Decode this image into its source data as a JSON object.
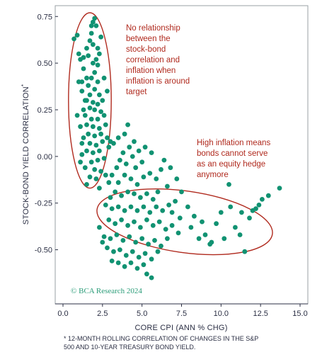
{
  "chart_data": {
    "type": "scatter",
    "xlabel": "CORE CPI (ANN % CHG)",
    "ylabel": "STOCK-BOND YIELD CORRELATION",
    "ylabel_marker": "*",
    "x_ticks": [
      "0.0",
      "2.5",
      "5.0",
      "7.5",
      "10.0",
      "12.5",
      "15.0"
    ],
    "y_ticks": [
      "0.75",
      "0.50",
      "0.25",
      "0.00",
      "-0.25",
      "-0.50"
    ],
    "xlim": [
      0,
      15
    ],
    "ylim": [
      -0.68,
      0.77
    ],
    "grid": false,
    "colors": {
      "points": "#119272",
      "annotation": "#b02a1e",
      "axis": "#2b2f44",
      "frame": "#9aa0a6"
    },
    "annotations": [
      {
        "lines": [
          "No relationship",
          "between the",
          "stock-bond",
          "correlation and",
          "inflation when",
          "inflation is around",
          "target"
        ]
      },
      {
        "lines": [
          "High inflation means",
          "bonds cannot serve",
          "as an equity hedge",
          "anymore"
        ]
      }
    ],
    "ellipses": [
      {
        "center_x": 1.7,
        "center_y": 0.3,
        "radius_x": 1.35,
        "radius_y": 0.47
      },
      {
        "center_x": 7.7,
        "center_y": -0.35,
        "radius_x": 5.6,
        "radius_y": 0.165,
        "rotation_deg": 8
      }
    ],
    "credit": "© BCA Research 2024",
    "footnote": [
      "* 12-MONTH ROLLING CORRELATION OF CHANGES IN THE S&P",
      "500 AND 10-YEAR TREASURY BOND YIELD."
    ],
    "points": [
      [
        0.7,
        0.63
      ],
      [
        0.9,
        0.65
      ],
      [
        1.0,
        0.55
      ],
      [
        1.1,
        0.52
      ],
      [
        1.2,
        0.4
      ],
      [
        1.3,
        0.47
      ],
      [
        1.4,
        0.3
      ],
      [
        1.5,
        0.42
      ],
      [
        1.6,
        0.54
      ],
      [
        1.7,
        0.62
      ],
      [
        1.8,
        0.7
      ],
      [
        1.9,
        0.72
      ],
      [
        2.0,
        0.74
      ],
      [
        1.8,
        0.66
      ],
      [
        2.1,
        0.7
      ],
      [
        1.9,
        0.6
      ],
      [
        2.1,
        0.52
      ],
      [
        2.3,
        0.55
      ],
      [
        2.2,
        0.49
      ],
      [
        1.9,
        0.5
      ],
      [
        2.0,
        0.45
      ],
      [
        1.8,
        0.42
      ],
      [
        2.2,
        0.4
      ],
      [
        1.6,
        0.38
      ],
      [
        1.7,
        0.33
      ],
      [
        2.0,
        0.36
      ],
      [
        2.3,
        0.33
      ],
      [
        1.5,
        0.3
      ],
      [
        1.9,
        0.29
      ],
      [
        2.2,
        0.28
      ],
      [
        2.5,
        0.3
      ],
      [
        1.7,
        0.26
      ],
      [
        2.0,
        0.25
      ],
      [
        2.4,
        0.24
      ],
      [
        1.4,
        0.22
      ],
      [
        1.8,
        0.2
      ],
      [
        2.2,
        0.2
      ],
      [
        2.6,
        0.22
      ],
      [
        1.5,
        0.17
      ],
      [
        1.9,
        0.16
      ],
      [
        2.3,
        0.15
      ],
      [
        2.7,
        0.17
      ],
      [
        1.6,
        0.12
      ],
      [
        2.0,
        0.11
      ],
      [
        2.4,
        0.12
      ],
      [
        1.3,
        0.1
      ],
      [
        1.7,
        0.07
      ],
      [
        2.1,
        0.06
      ],
      [
        2.5,
        0.08
      ],
      [
        2.8,
        0.1
      ],
      [
        1.5,
        0.03
      ],
      [
        1.9,
        0.02
      ],
      [
        2.3,
        0.03
      ],
      [
        1.2,
        0.01
      ],
      [
        1.8,
        -0.03
      ],
      [
        2.2,
        -0.02
      ],
      [
        2.6,
        -0.01
      ],
      [
        1.4,
        -0.06
      ],
      [
        2.0,
        -0.07
      ],
      [
        2.4,
        -0.08
      ],
      [
        1.7,
        -0.11
      ],
      [
        2.1,
        -0.12
      ],
      [
        2.7,
        -0.1
      ],
      [
        1.5,
        -0.15
      ],
      [
        2.3,
        -0.17
      ],
      [
        2.9,
        -0.14
      ],
      [
        1.1,
        0.16
      ],
      [
        1.3,
        0.25
      ],
      [
        1.2,
        0.35
      ],
      [
        1.5,
        0.58
      ],
      [
        1.3,
        0.53
      ],
      [
        1.0,
        0.4
      ],
      [
        0.9,
        0.22
      ],
      [
        1.2,
        0.07
      ],
      [
        1.1,
        -0.03
      ],
      [
        2.8,
        0.35
      ],
      [
        2.6,
        0.42
      ],
      [
        2.9,
        0.05
      ],
      [
        2.4,
        0.64
      ],
      [
        2.2,
        0.58
      ],
      [
        3.0,
        0.08
      ],
      [
        3.2,
        0.07
      ],
      [
        3.5,
        0.1
      ],
      [
        3.9,
        0.12
      ],
      [
        4.1,
        0.17
      ],
      [
        4.5,
        0.08
      ],
      [
        4.2,
        0.05
      ],
      [
        3.8,
        0.02
      ],
      [
        3.6,
        -0.02
      ],
      [
        4.0,
        -0.04
      ],
      [
        4.4,
        0.0
      ],
      [
        4.8,
        0.03
      ],
      [
        5.2,
        0.05
      ],
      [
        5.6,
        0.02
      ],
      [
        5.0,
        -0.03
      ],
      [
        4.6,
        -0.06
      ],
      [
        3.4,
        -0.06
      ],
      [
        3.1,
        -0.1
      ],
      [
        3.5,
        -0.14
      ],
      [
        3.9,
        -0.1
      ],
      [
        4.3,
        -0.12
      ],
      [
        4.7,
        -0.15
      ],
      [
        5.1,
        -0.11
      ],
      [
        5.5,
        -0.09
      ],
      [
        5.9,
        -0.12
      ],
      [
        6.2,
        -0.07
      ],
      [
        6.4,
        -0.02
      ],
      [
        6.8,
        -0.06
      ],
      [
        7.2,
        -0.12
      ],
      [
        6.6,
        -0.16
      ],
      [
        6.0,
        -0.19
      ],
      [
        5.7,
        -0.23
      ],
      [
        5.3,
        -0.2
      ],
      [
        4.9,
        -0.22
      ],
      [
        4.5,
        -0.2
      ],
      [
        4.1,
        -0.19
      ],
      [
        3.7,
        -0.21
      ],
      [
        3.3,
        -0.19
      ],
      [
        3.0,
        -0.22
      ],
      [
        2.7,
        -0.26
      ],
      [
        3.1,
        -0.28
      ],
      [
        3.5,
        -0.27
      ],
      [
        3.9,
        -0.29
      ],
      [
        4.3,
        -0.27
      ],
      [
        4.7,
        -0.29
      ],
      [
        5.1,
        -0.27
      ],
      [
        5.5,
        -0.3
      ],
      [
        5.9,
        -0.27
      ],
      [
        6.3,
        -0.29
      ],
      [
        6.7,
        -0.26
      ],
      [
        7.1,
        -0.24
      ],
      [
        7.5,
        -0.19
      ],
      [
        7.9,
        -0.27
      ],
      [
        8.3,
        -0.32
      ],
      [
        2.9,
        -0.34
      ],
      [
        3.3,
        -0.36
      ],
      [
        3.7,
        -0.34
      ],
      [
        4.1,
        -0.37
      ],
      [
        4.5,
        -0.35
      ],
      [
        4.9,
        -0.38
      ],
      [
        5.3,
        -0.34
      ],
      [
        5.7,
        -0.37
      ],
      [
        6.1,
        -0.35
      ],
      [
        6.5,
        -0.39
      ],
      [
        6.9,
        -0.37
      ],
      [
        7.3,
        -0.41
      ],
      [
        2.6,
        -0.43
      ],
      [
        3.0,
        -0.44
      ],
      [
        3.4,
        -0.42
      ],
      [
        3.8,
        -0.45
      ],
      [
        4.2,
        -0.43
      ],
      [
        4.6,
        -0.46
      ],
      [
        5.0,
        -0.44
      ],
      [
        5.4,
        -0.47
      ],
      [
        5.8,
        -0.45
      ],
      [
        6.2,
        -0.48
      ],
      [
        6.6,
        -0.44
      ],
      [
        2.8,
        -0.49
      ],
      [
        3.2,
        -0.51
      ],
      [
        3.6,
        -0.5
      ],
      [
        4.0,
        -0.53
      ],
      [
        4.4,
        -0.51
      ],
      [
        4.8,
        -0.54
      ],
      [
        5.2,
        -0.52
      ],
      [
        5.6,
        -0.55
      ],
      [
        6.0,
        -0.51
      ],
      [
        3.5,
        -0.57
      ],
      [
        3.9,
        -0.59
      ],
      [
        4.3,
        -0.57
      ],
      [
        4.7,
        -0.6
      ],
      [
        5.1,
        -0.58
      ],
      [
        5.3,
        -0.63
      ],
      [
        5.6,
        -0.65
      ],
      [
        3.1,
        -0.56
      ],
      [
        2.5,
        -0.46
      ],
      [
        2.3,
        -0.38
      ],
      [
        6.9,
        -0.3
      ],
      [
        7.4,
        -0.33
      ],
      [
        8.1,
        -0.38
      ],
      [
        8.6,
        -0.44
      ],
      [
        9.0,
        -0.42
      ],
      [
        9.3,
        -0.47
      ],
      [
        9.7,
        -0.36
      ],
      [
        10.2,
        -0.44
      ],
      [
        10.0,
        -0.3
      ],
      [
        10.6,
        -0.27
      ],
      [
        10.9,
        -0.38
      ],
      [
        11.2,
        -0.42
      ],
      [
        11.5,
        -0.51
      ],
      [
        11.8,
        -0.33
      ],
      [
        12.0,
        -0.29
      ],
      [
        12.4,
        -0.26
      ],
      [
        12.6,
        -0.23
      ],
      [
        13.0,
        -0.21
      ],
      [
        13.7,
        -0.17
      ],
      [
        12.2,
        -0.28
      ],
      [
        11.3,
        -0.3
      ],
      [
        8.8,
        -0.35
      ],
      [
        9.4,
        -0.46
      ],
      [
        10.5,
        -0.15
      ]
    ]
  }
}
